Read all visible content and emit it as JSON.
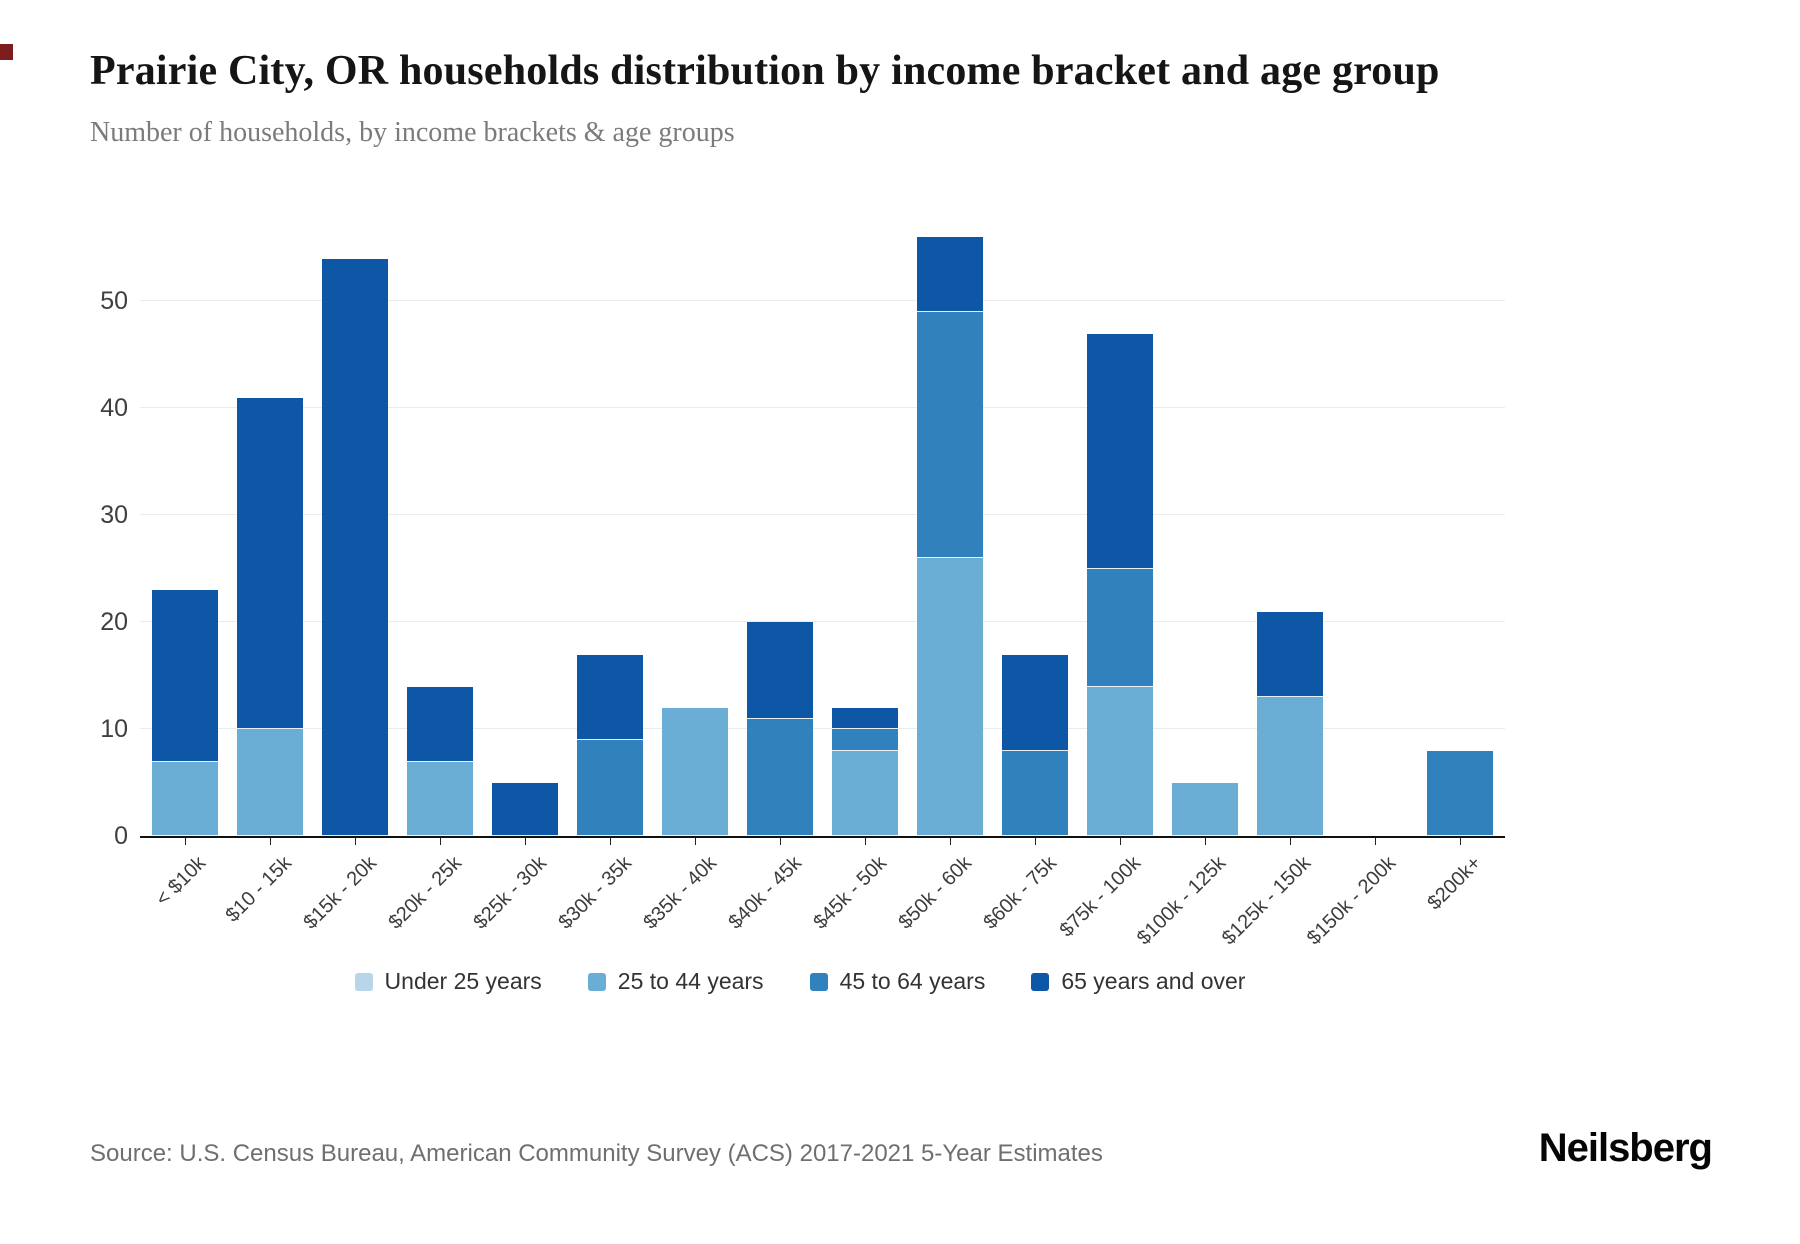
{
  "header": {
    "title": "Prairie City, OR households distribution by income bracket and age group",
    "subtitle": "Number of households, by income brackets & age groups"
  },
  "chart_data": {
    "type": "bar",
    "stacked": true,
    "title": "Prairie City, OR households distribution by income bracket and age group",
    "subtitle": "Number of households, by income brackets & age groups",
    "categories": [
      "< $10k",
      "$10 - 15k",
      "$15k - 20k",
      "$20k - 25k",
      "$25k - 30k",
      "$30k - 35k",
      "$35k - 40k",
      "$40k - 45k",
      "$45k - 50k",
      "$50k - 60k",
      "$60k - 75k",
      "$75k - 100k",
      "$100k - 125k",
      "$125k - 150k",
      "$150k - 200k",
      "$200k+"
    ],
    "series": [
      {
        "name": "Under 25 years",
        "color": "#b9d5ea",
        "values": [
          0,
          0,
          0,
          0,
          0,
          0,
          0,
          0,
          0,
          0,
          0,
          0,
          0,
          0,
          0,
          0
        ]
      },
      {
        "name": "25 to 44 years",
        "color": "#6aaed6",
        "values": [
          7,
          10,
          0,
          7,
          0,
          0,
          12,
          0,
          8,
          26,
          0,
          14,
          5,
          13,
          0,
          0
        ]
      },
      {
        "name": "45 to 64 years",
        "color": "#3181bd",
        "values": [
          0,
          0,
          0,
          0,
          0,
          9,
          0,
          11,
          2,
          23,
          8,
          11,
          0,
          0,
          0,
          8
        ]
      },
      {
        "name": "65 years and over",
        "color": "#0d57a6",
        "values": [
          16,
          31,
          54,
          7,
          5,
          8,
          0,
          9,
          2,
          7,
          9,
          22,
          0,
          8,
          0,
          0
        ]
      }
    ],
    "totals": [
      23,
      41,
      54,
      14,
      5,
      17,
      12,
      20,
      12,
      56,
      17,
      47,
      5,
      21,
      0,
      8
    ],
    "xlabel": "",
    "ylabel": "",
    "yticks": [
      0,
      10,
      20,
      30,
      40,
      50
    ],
    "ylim": [
      0,
      59.5
    ],
    "grid": true,
    "legend_position": "bottom"
  },
  "footer": {
    "source": "Source: U.S. Census Bureau, American Community Survey (ACS) 2017-2021 5-Year Estimates",
    "brand": "Neilsberg"
  }
}
